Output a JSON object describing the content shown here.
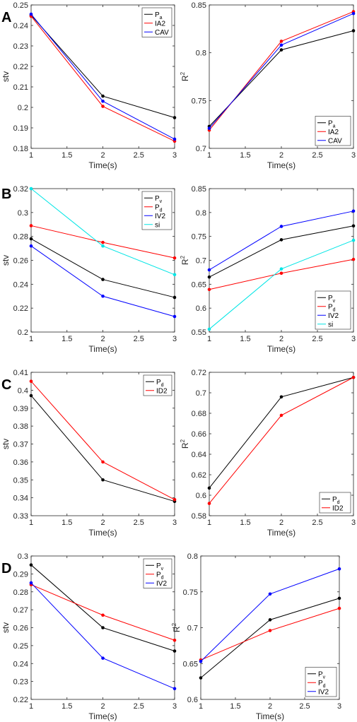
{
  "panel_labels": [
    "A",
    "B",
    "C",
    "D"
  ],
  "chart_data": [
    {
      "panel": "A",
      "type": "line",
      "xlabel": "Time(s)",
      "ylabel": "stv",
      "x": [
        1,
        2,
        3
      ],
      "xlim": [
        1,
        3
      ],
      "xticks": [
        "1",
        "1.5",
        "2",
        "2.5",
        "3"
      ],
      "ylim": [
        0.18,
        0.25
      ],
      "yticks": [
        "0.18",
        "0.19",
        "0.2",
        "0.21",
        "0.22",
        "0.23",
        "0.24",
        "0.25"
      ],
      "grid": false,
      "legend_position": "top-right",
      "series": [
        {
          "name": "P",
          "sub": "a",
          "color": "#000000",
          "values": [
            0.245,
            0.2055,
            0.195
          ]
        },
        {
          "name": "IA2",
          "sub": "",
          "color": "#ff0000",
          "values": [
            0.2445,
            0.2005,
            0.1835
          ]
        },
        {
          "name": "CAV",
          "sub": "",
          "color": "#0000ff",
          "values": [
            0.2455,
            0.203,
            0.1845
          ]
        }
      ]
    },
    {
      "panel": "A",
      "type": "line",
      "xlabel": "Time(s)",
      "ylabel": "R",
      "ylabel_sup": "2",
      "x": [
        1,
        2,
        3
      ],
      "xlim": [
        1,
        3
      ],
      "xticks": [
        "1",
        "1.5",
        "2",
        "2.5",
        "3"
      ],
      "ylim": [
        0.7,
        0.85
      ],
      "yticks": [
        "0.7",
        "0.75",
        "0.8",
        "0.85"
      ],
      "grid": false,
      "legend_position": "bottom-right",
      "series": [
        {
          "name": "P",
          "sub": "a",
          "color": "#000000",
          "values": [
            0.723,
            0.803,
            0.823
          ]
        },
        {
          "name": "IA2",
          "sub": "",
          "color": "#ff0000",
          "values": [
            0.719,
            0.812,
            0.843
          ]
        },
        {
          "name": "CAV",
          "sub": "",
          "color": "#0000ff",
          "values": [
            0.721,
            0.808,
            0.841
          ]
        }
      ]
    },
    {
      "panel": "B",
      "type": "line",
      "xlabel": "Time(s)",
      "ylabel": "stv",
      "x": [
        1,
        2,
        3
      ],
      "xlim": [
        1,
        3
      ],
      "xticks": [
        "1",
        "1.5",
        "2",
        "2.5",
        "3"
      ],
      "ylim": [
        0.2,
        0.32
      ],
      "yticks": [
        "0.2",
        "0.22",
        "0.24",
        "0.26",
        "0.28",
        "0.3",
        "0.32"
      ],
      "grid": false,
      "legend_position": "top-right",
      "series": [
        {
          "name": "P",
          "sub": "v",
          "color": "#000000",
          "values": [
            0.278,
            0.244,
            0.229
          ]
        },
        {
          "name": "P",
          "sub": "d",
          "color": "#ff0000",
          "values": [
            0.289,
            0.275,
            0.262
          ]
        },
        {
          "name": "IV2",
          "sub": "",
          "color": "#0000ff",
          "values": [
            0.272,
            0.23,
            0.213
          ]
        },
        {
          "name": "si",
          "sub": "",
          "color": "#00e5e5",
          "values": [
            0.32,
            0.272,
            0.248
          ]
        }
      ]
    },
    {
      "panel": "B",
      "type": "line",
      "xlabel": "Time(s)",
      "ylabel": "R",
      "ylabel_sup": "2",
      "x": [
        1,
        2,
        3
      ],
      "xlim": [
        1,
        3
      ],
      "xticks": [
        "1",
        "1.5",
        "2",
        "2.5",
        "3"
      ],
      "ylim": [
        0.55,
        0.85
      ],
      "yticks": [
        "0.55",
        "0.6",
        "0.65",
        "0.7",
        "0.75",
        "0.8",
        "0.85"
      ],
      "grid": false,
      "legend_position": "bottom-right",
      "series": [
        {
          "name": "P",
          "sub": "v",
          "color": "#000000",
          "values": [
            0.665,
            0.743,
            0.772
          ]
        },
        {
          "name": "P",
          "sub": "d",
          "color": "#ff0000",
          "values": [
            0.639,
            0.673,
            0.702
          ]
        },
        {
          "name": "IV2",
          "sub": "",
          "color": "#0000ff",
          "values": [
            0.68,
            0.771,
            0.803
          ]
        },
        {
          "name": "si",
          "sub": "",
          "color": "#00e5e5",
          "values": [
            0.556,
            0.682,
            0.742
          ]
        }
      ]
    },
    {
      "panel": "C",
      "type": "line",
      "xlabel": "Time(s)",
      "ylabel": "stv",
      "x": [
        1,
        2,
        3
      ],
      "xlim": [
        1,
        3
      ],
      "xticks": [
        "1",
        "1.5",
        "2",
        "2.5",
        "3"
      ],
      "ylim": [
        0.33,
        0.41
      ],
      "yticks": [
        "0.33",
        "0.34",
        "0.35",
        "0.36",
        "0.37",
        "0.38",
        "0.39",
        "0.4",
        "0.41"
      ],
      "grid": false,
      "legend_position": "top-right",
      "series": [
        {
          "name": "P",
          "sub": "d",
          "color": "#000000",
          "values": [
            0.397,
            0.35,
            0.338
          ]
        },
        {
          "name": "ID2",
          "sub": "",
          "color": "#ff0000",
          "values": [
            0.405,
            0.36,
            0.339
          ]
        }
      ]
    },
    {
      "panel": "C",
      "type": "line",
      "xlabel": "Time(s)",
      "ylabel": "R",
      "ylabel_sup": "2",
      "x": [
        1,
        2,
        3
      ],
      "xlim": [
        1,
        3
      ],
      "xticks": [
        "1",
        "1.5",
        "2",
        "2.5",
        "3"
      ],
      "ylim": [
        0.58,
        0.72
      ],
      "yticks": [
        "0.58",
        "0.6",
        "0.62",
        "0.64",
        "0.66",
        "0.68",
        "0.7",
        "0.72"
      ],
      "grid": false,
      "legend_position": "bottom-right",
      "series": [
        {
          "name": "P",
          "sub": "d",
          "color": "#000000",
          "values": [
            0.607,
            0.696,
            0.715
          ]
        },
        {
          "name": "ID2",
          "sub": "",
          "color": "#ff0000",
          "values": [
            0.592,
            0.678,
            0.715
          ]
        }
      ]
    },
    {
      "panel": "D",
      "type": "line",
      "xlabel": "Time(s)",
      "ylabel": "stv",
      "x": [
        1,
        2,
        3
      ],
      "xlim": [
        1,
        3
      ],
      "xticks": [
        "1",
        "1.5",
        "2",
        "2.5",
        "3"
      ],
      "ylim": [
        0.22,
        0.3
      ],
      "yticks": [
        "0.22",
        "0.23",
        "0.24",
        "0.25",
        "0.26",
        "0.27",
        "0.28",
        "0.29",
        "0.3"
      ],
      "grid": false,
      "legend_position": "top-right",
      "series": [
        {
          "name": "P",
          "sub": "v",
          "color": "#000000",
          "values": [
            0.295,
            0.26,
            0.247
          ]
        },
        {
          "name": "P",
          "sub": "d",
          "color": "#ff0000",
          "values": [
            0.284,
            0.267,
            0.253
          ]
        },
        {
          "name": "IV2",
          "sub": "",
          "color": "#0000ff",
          "values": [
            0.285,
            0.243,
            0.226
          ]
        }
      ]
    },
    {
      "panel": "D",
      "type": "line",
      "xlabel": "Time(s)",
      "ylabel": "R",
      "ylabel_sup": "2",
      "x": [
        1,
        2,
        3
      ],
      "xlim": [
        1,
        3
      ],
      "xticks": [
        "1",
        "1.5",
        "2",
        "2.5",
        "3"
      ],
      "ylim": [
        0.6,
        0.8
      ],
      "yticks": [
        "0.6",
        "0.65",
        "0.7",
        "0.75",
        "0.8"
      ],
      "grid": false,
      "legend_position": "bottom-right",
      "series": [
        {
          "name": "P",
          "sub": "v",
          "color": "#000000",
          "values": [
            0.63,
            0.711,
            0.741
          ]
        },
        {
          "name": "P",
          "sub": "d",
          "color": "#ff0000",
          "values": [
            0.655,
            0.696,
            0.727
          ]
        },
        {
          "name": "IV2",
          "sub": "",
          "color": "#0000ff",
          "values": [
            0.653,
            0.747,
            0.782
          ]
        }
      ]
    }
  ]
}
